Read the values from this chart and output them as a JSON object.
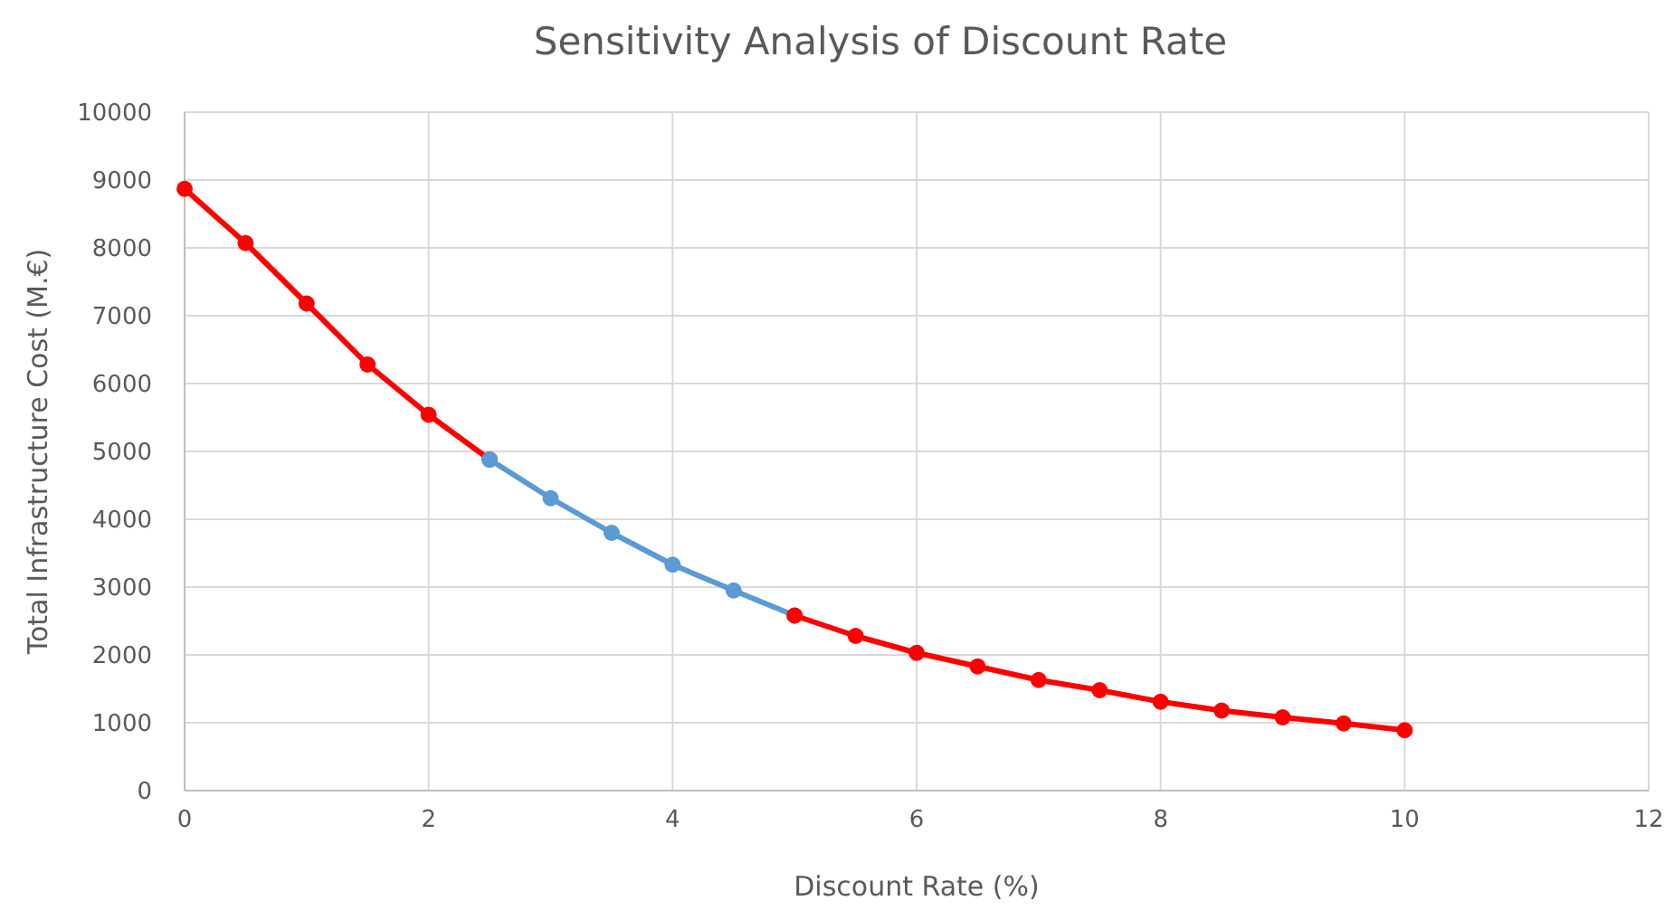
{
  "chart_data": {
    "type": "line",
    "title": "Sensitivity Analysis of Discount Rate",
    "xlabel": "Discount Rate (%)",
    "ylabel": "Total Infrastructure Cost (M.€)",
    "series": [
      {
        "color": "#ff0000",
        "x": [
          0,
          0.5,
          1,
          1.5,
          2,
          2.5
        ],
        "values": [
          8870,
          8070,
          7180,
          6280,
          5540,
          4880
        ]
      },
      {
        "color": "#5b9bd5",
        "x": [
          2.5,
          3,
          3.5,
          4,
          4.5,
          5
        ],
        "values": [
          4880,
          4310,
          3800,
          3330,
          2950,
          2580
        ]
      },
      {
        "color": "#ff0000",
        "x": [
          5,
          5.5,
          6,
          6.5,
          7,
          7.5,
          8,
          8.5,
          9,
          9.5,
          10
        ],
        "values": [
          2580,
          2280,
          2030,
          1830,
          1630,
          1480,
          1310,
          1180,
          1080,
          990,
          890
        ]
      }
    ],
    "xlim": [
      0,
      12
    ],
    "xticks": [
      0,
      2,
      4,
      6,
      8,
      10,
      12
    ],
    "ylim": [
      0,
      10000
    ],
    "yticks": [
      0,
      1000,
      2000,
      3000,
      4000,
      5000,
      6000,
      7000,
      8000,
      9000,
      10000
    ],
    "grid": true,
    "marker": "circle",
    "line_style": "solid"
  }
}
